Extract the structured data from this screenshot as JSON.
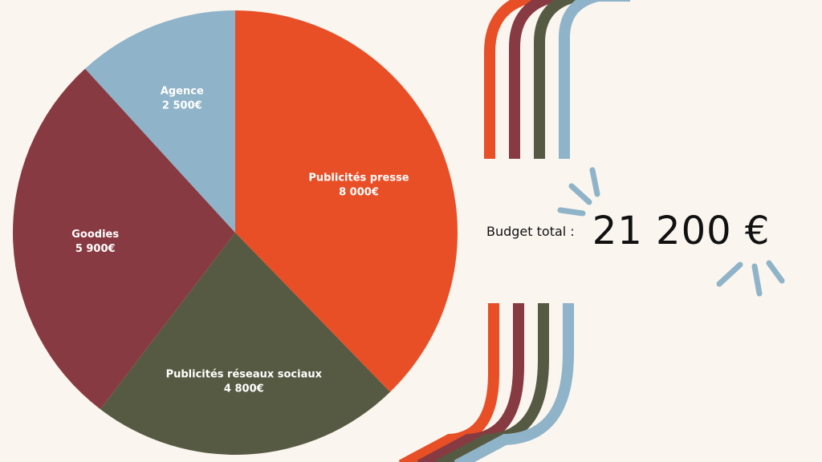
{
  "chart_data": {
    "type": "pie",
    "title": "",
    "slices": [
      {
        "label": "Publicités presse",
        "value_label": "8 000€",
        "value": 8000,
        "color": "#e84f27"
      },
      {
        "label": "Publicités réseaux sociaux",
        "value_label": "4 800€",
        "value": 4800,
        "color": "#575a42"
      },
      {
        "label": "Goodies",
        "value_label": "5 900€",
        "value": 5900,
        "color": "#883a42"
      },
      {
        "label": "Agence",
        "value_label": "2 500€",
        "value": 2500,
        "color": "#8fb3c8"
      }
    ],
    "start_angle": "12 o'clock",
    "direction": "clockwise",
    "legend": "none"
  },
  "budget": {
    "label": "Budget total :",
    "value": "21 200 €"
  },
  "decoration": {
    "stripe_colors": [
      "#e84f27",
      "#883a42",
      "#575a42",
      "#8fb3c8"
    ],
    "burst_color": "#8fb3c8"
  }
}
